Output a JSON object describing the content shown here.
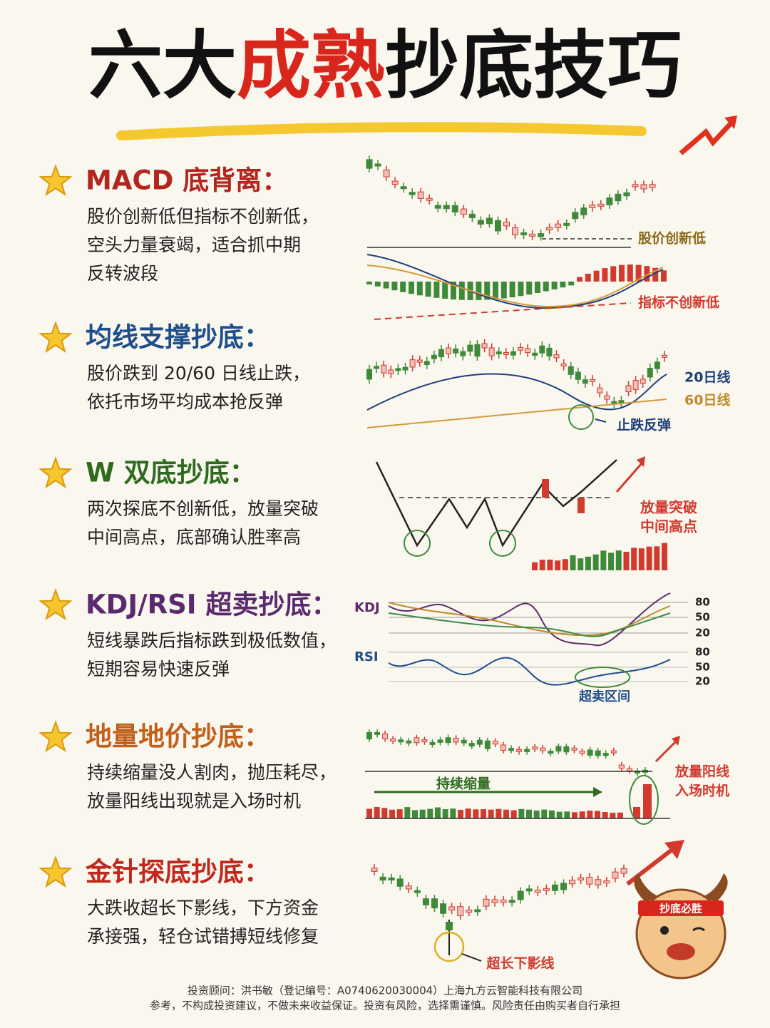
{
  "title": {
    "part1": "六大",
    "part2": "成熟",
    "part3": "抄底技巧"
  },
  "sections": [
    {
      "heading": "MACD 底背离：",
      "lines": [
        "股价创新低但指标不创新低，",
        "空头力量衰竭，适合抓中期",
        "反转波段"
      ],
      "labels": [
        "股价创新低",
        "指标不创新低"
      ]
    },
    {
      "heading": "均线支撑抄底：",
      "lines": [
        "股价跌到 20/60 日线止跌，",
        "依托市场平均成本抢反弹"
      ],
      "labels": [
        "20日线",
        "60日线",
        "止跌反弹"
      ]
    },
    {
      "heading": "W 双底抄底：",
      "lines": [
        "两次探底不创新低，放量突破",
        "中间高点，底部确认胜率高"
      ],
      "labels": [
        "放量突破",
        "中间高点"
      ]
    },
    {
      "heading": "KDJ/RSI 超卖抄底：",
      "lines": [
        "短线暴跌后指标跌到极低数值，",
        "短期容易快速反弹"
      ],
      "labels": [
        "KDJ",
        "RSI",
        "超卖区间"
      ],
      "kdj_levels": [
        "80",
        "50",
        "20"
      ],
      "rsi_levels": [
        "80",
        "50",
        "20"
      ]
    },
    {
      "heading": "地量地价抄底：",
      "lines": [
        "持续缩量没人割肉，抛压耗尽，",
        "放量阳线出现就是入场时机"
      ],
      "labels": [
        "持续缩量",
        "放量阳线",
        "入场时机"
      ]
    },
    {
      "heading": "金针探底抄底：",
      "lines": [
        "大跌收超长下影线，下方资金",
        "承接强，轻仓试错搏短线修复"
      ],
      "labels": [
        "超长下影线"
      ],
      "badge": "抄底必胜"
    }
  ],
  "footer": [
    "投资顾问：洪书敏（登记编号：A0740620030004）上海九方云智能科技有限公司",
    "参考，不构成投资建议，不做未来收益保证。投资有风险，选择需谨慎。风险责任由购买者自行承担"
  ]
}
